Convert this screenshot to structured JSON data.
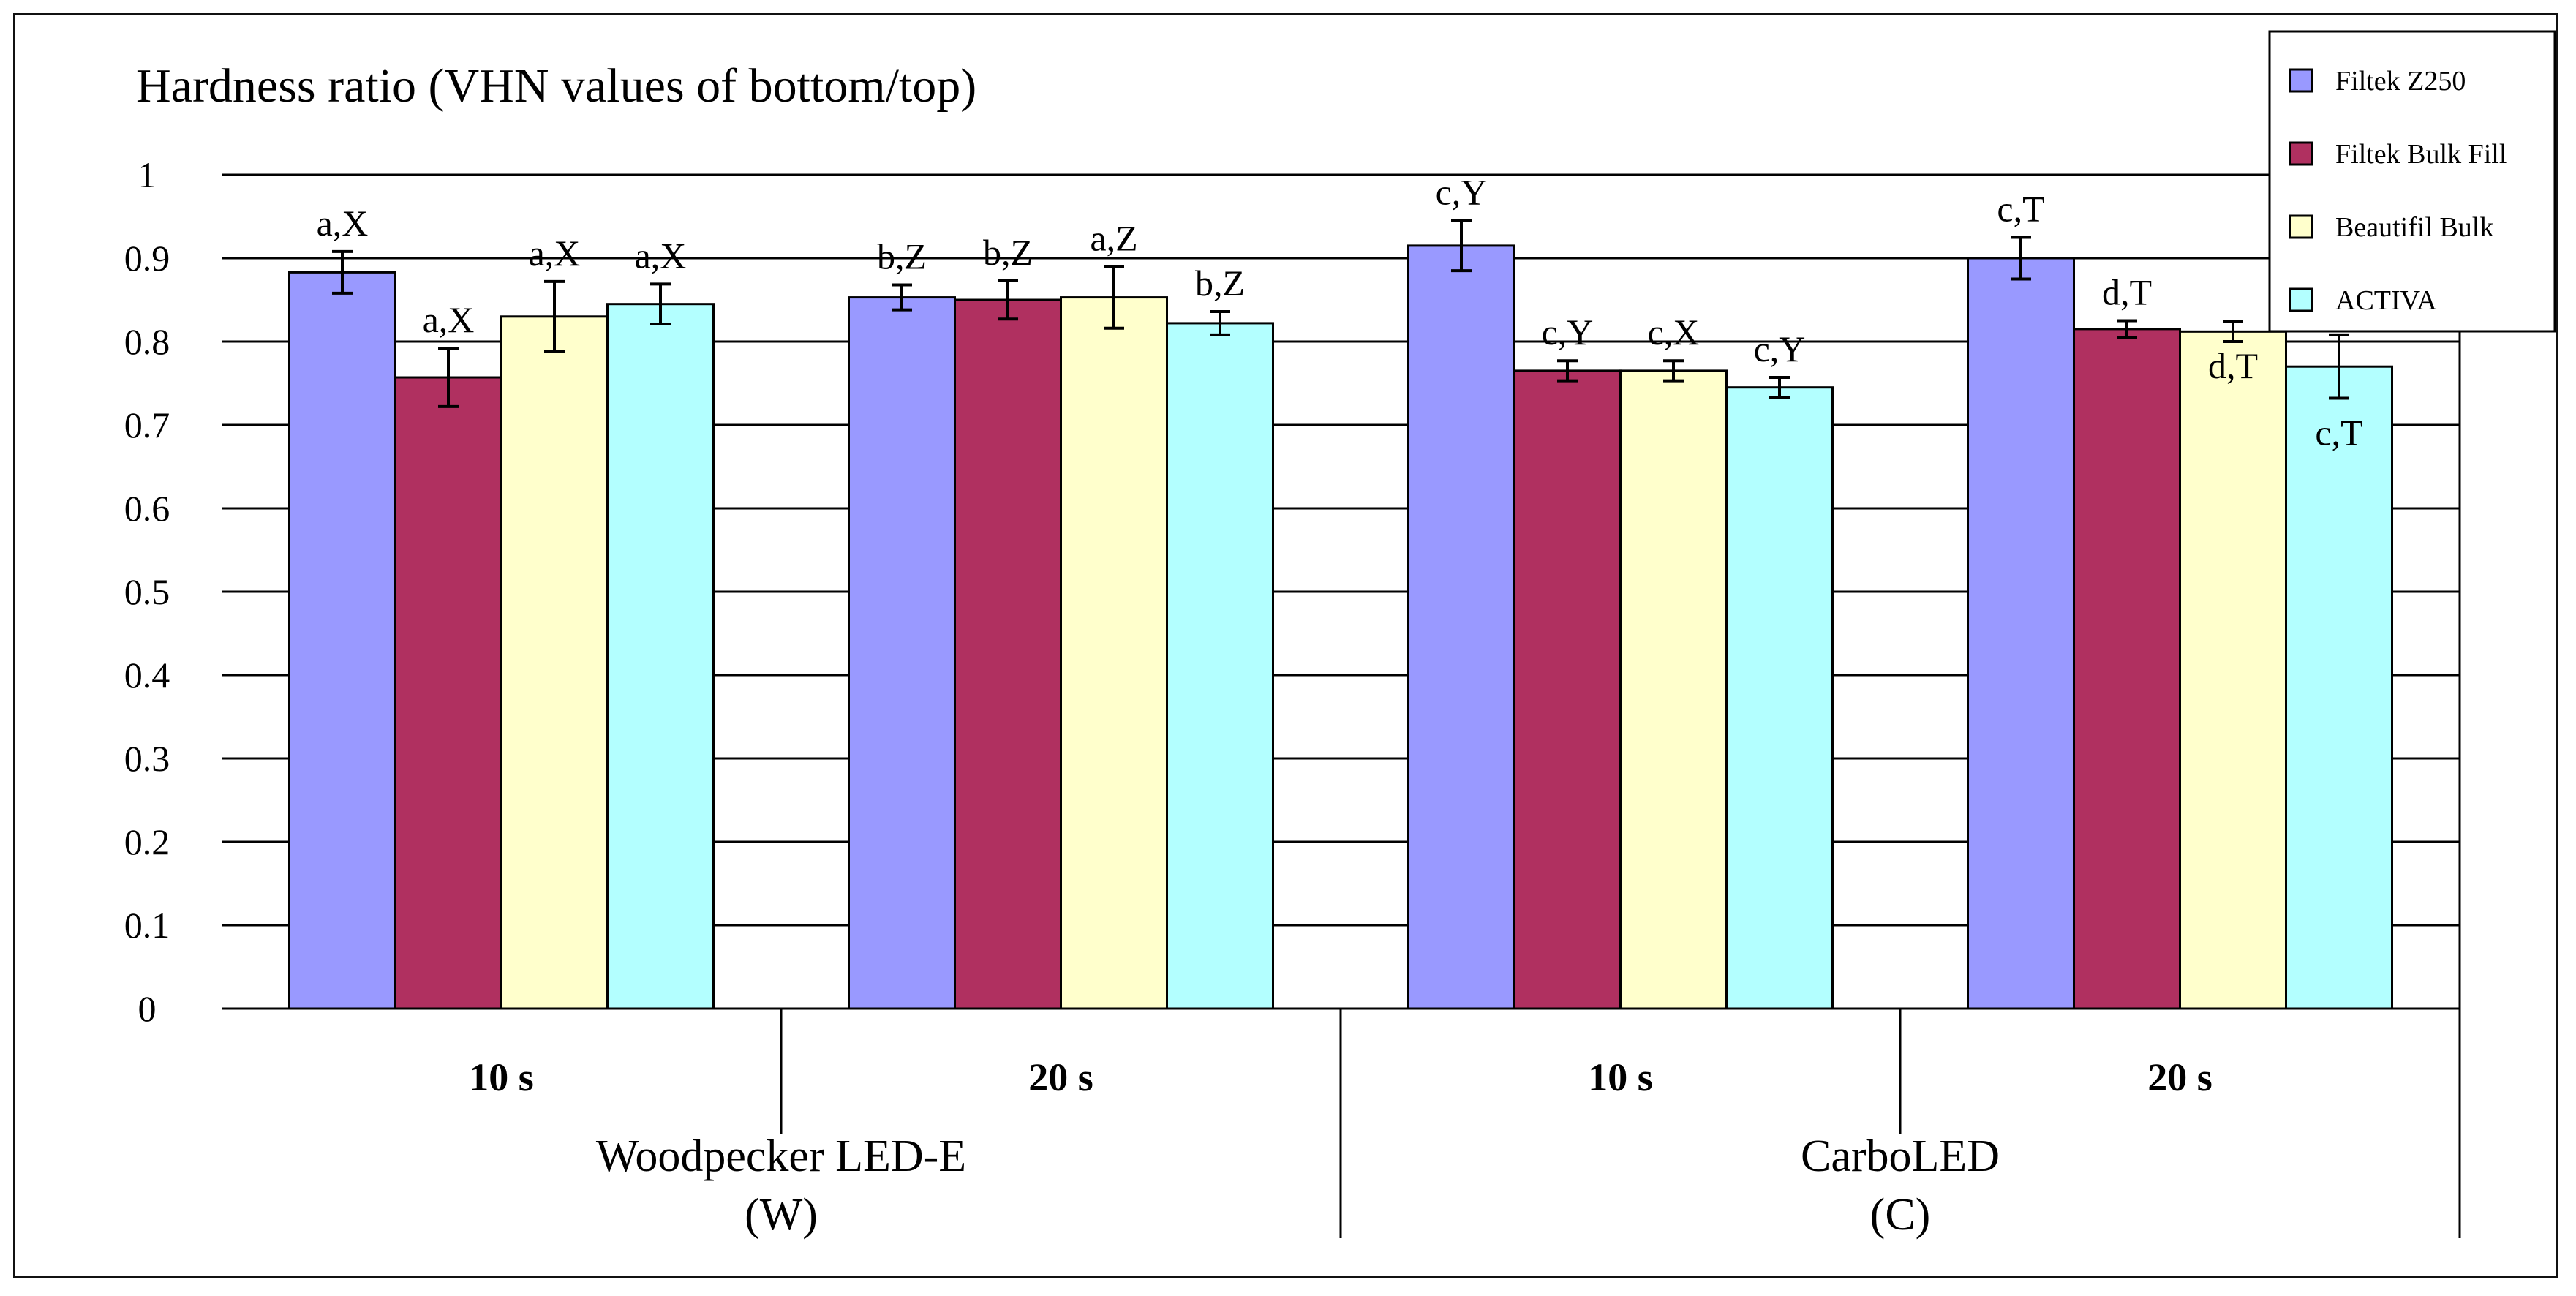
{
  "chart_data": {
    "type": "bar",
    "title": "Hardness ratio (VHN values of bottom/top)",
    "xlabel": "",
    "ylabel": "",
    "ylim": [
      0,
      1
    ],
    "yticks": [
      "0",
      "0.1",
      "0.2",
      "0.3",
      "0.4",
      "0.5",
      "0.6",
      "0.7",
      "0.8",
      "0.9",
      "1"
    ],
    "groups": [
      {
        "name": "Woodpecker LED-E",
        "sub": "(W)"
      },
      {
        "name": "CarboLED",
        "sub": "(C)"
      }
    ],
    "categories": [
      "10 s",
      "20 s",
      "10 s",
      "20 s"
    ],
    "series": [
      {
        "name": "Filtek Z250",
        "color": "#9999ff",
        "values": [
          0.883,
          0.853,
          0.915,
          0.9
        ],
        "errors": [
          0.025,
          0.015,
          0.03,
          0.025
        ],
        "labels": [
          "a,X",
          "b,Z",
          "c,Y",
          "c,T"
        ]
      },
      {
        "name": "Filtek Bulk Fill",
        "color": "#b03060",
        "values": [
          0.757,
          0.85,
          0.765,
          0.815
        ],
        "errors": [
          0.035,
          0.023,
          0.012,
          0.01
        ],
        "labels": [
          "a,X",
          "b,Z",
          "c,Y",
          "d,T"
        ]
      },
      {
        "name": "Beautifil Bulk",
        "color": "#ffffcc",
        "values": [
          0.83,
          0.853,
          0.765,
          0.812
        ],
        "errors": [
          0.042,
          0.037,
          0.012,
          0.012
        ],
        "labels": [
          "a,X",
          "a,Z",
          "c,X",
          "d,T"
        ]
      },
      {
        "name": "ACTIVA",
        "color": "#b3ffff",
        "values": [
          0.845,
          0.822,
          0.745,
          0.77
        ],
        "errors": [
          0.024,
          0.014,
          0.012,
          0.038
        ],
        "labels": [
          "a,X",
          "b,Z",
          "c,Y",
          "c,T"
        ]
      }
    ],
    "legend": {
      "position": "top-right"
    }
  }
}
